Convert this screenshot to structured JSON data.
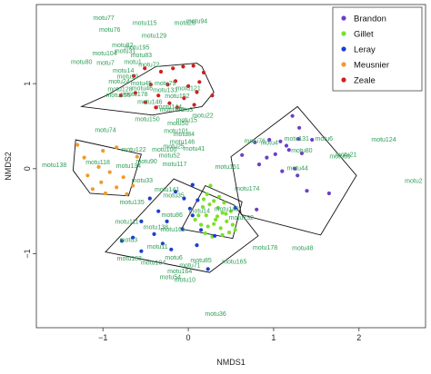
{
  "chart_data": {
    "type": "scatter",
    "xlabel": "NMDS1",
    "ylabel": "NMDS2",
    "x_ticks": [
      -1,
      0,
      1,
      2
    ],
    "y_ticks": [
      -1,
      0,
      1
    ],
    "xlim": [
      -1.78,
      2.78
    ],
    "ylim": [
      -1.87,
      1.93
    ],
    "legend": {
      "position": "top-right",
      "entries": [
        {
          "name": "Brandon",
          "color": "#6b3fc7"
        },
        {
          "name": "Gillet",
          "color": "#7be02a"
        },
        {
          "name": "Leray",
          "color": "#1a3fcf"
        },
        {
          "name": "Meusnier",
          "color": "#f09a2a"
        },
        {
          "name": "Zeale",
          "color": "#d11e1e"
        }
      ]
    },
    "series": [
      {
        "name": "Brandon",
        "color": "#6b3fc7",
        "hull": [
          [
            0.5,
            0.14
          ],
          [
            1.28,
            0.73
          ],
          [
            1.97,
            -0.08
          ],
          [
            1.55,
            -0.78
          ],
          [
            0.62,
            -0.54
          ]
        ],
        "points": [
          [
            1.22,
            0.62
          ],
          [
            1.3,
            0.48
          ],
          [
            1.08,
            0.32
          ],
          [
            0.95,
            0.34
          ],
          [
            0.78,
            0.31
          ],
          [
            1.15,
            0.27
          ],
          [
            1.29,
            0.35
          ],
          [
            1.45,
            0.34
          ],
          [
            1.18,
            0.22
          ],
          [
            0.63,
            0.16
          ],
          [
            0.92,
            0.13
          ],
          [
            0.83,
            0.05
          ],
          [
            1.25,
            0.0
          ],
          [
            1.1,
            -0.03
          ],
          [
            1.28,
            -0.08
          ],
          [
            1.65,
            -0.29
          ],
          [
            0.8,
            -0.48
          ],
          [
            1.39,
            -0.26
          ],
          [
            1.02,
            0.17
          ],
          [
            1.33,
            0.18
          ]
        ]
      },
      {
        "name": "Gillet",
        "color": "#7be02a",
        "hull": [
          [
            0.2,
            -0.2
          ],
          [
            0.63,
            -0.39
          ],
          [
            0.52,
            -0.82
          ],
          [
            -0.08,
            -0.71
          ]
        ],
        "points": [
          [
            0.22,
            -0.3
          ],
          [
            0.25,
            -0.42
          ],
          [
            0.21,
            -0.55
          ],
          [
            0.23,
            -0.68
          ],
          [
            0.3,
            -0.38
          ],
          [
            0.35,
            -0.46
          ],
          [
            0.32,
            -0.6
          ],
          [
            0.38,
            -0.7
          ],
          [
            0.4,
            -0.52
          ],
          [
            0.42,
            -0.4
          ],
          [
            0.45,
            -0.62
          ],
          [
            0.48,
            -0.75
          ],
          [
            0.28,
            -0.8
          ],
          [
            0.15,
            -0.66
          ],
          [
            0.12,
            -0.55
          ],
          [
            0.17,
            -0.45
          ],
          [
            0.5,
            -0.5
          ],
          [
            0.52,
            -0.66
          ],
          [
            0.36,
            -0.33
          ],
          [
            0.26,
            -0.2
          ],
          [
            0.34,
            -0.56
          ],
          [
            0.44,
            -0.53
          ],
          [
            0.2,
            -0.76
          ],
          [
            0.08,
            -0.6
          ],
          [
            0.55,
            -0.72
          ],
          [
            0.3,
            -0.65
          ],
          [
            0.4,
            -0.78
          ],
          [
            0.18,
            -0.36
          ]
        ]
      },
      {
        "name": "Leray",
        "color": "#1a3fcf",
        "hull": [
          [
            -0.17,
            -0.12
          ],
          [
            0.54,
            -0.43
          ],
          [
            0.82,
            -0.79
          ],
          [
            0.25,
            -1.22
          ],
          [
            -0.97,
            -0.98
          ]
        ],
        "points": [
          [
            0.05,
            -0.19
          ],
          [
            0.11,
            -0.37
          ],
          [
            -0.05,
            -0.35
          ],
          [
            0.02,
            -0.47
          ],
          [
            -0.35,
            -0.5
          ],
          [
            -0.55,
            -0.62
          ],
          [
            -0.4,
            -0.77
          ],
          [
            -0.65,
            -0.81
          ],
          [
            -0.78,
            -0.85
          ],
          [
            -0.3,
            -0.88
          ],
          [
            -0.2,
            -0.95
          ],
          [
            0.05,
            -0.55
          ],
          [
            0.15,
            -0.72
          ],
          [
            -0.55,
            -0.97
          ],
          [
            0.23,
            -1.18
          ],
          [
            -0.07,
            -0.71
          ],
          [
            -0.45,
            -0.35
          ],
          [
            0.31,
            -0.79
          ],
          [
            0.55,
            -0.46
          ],
          [
            -0.15,
            -0.27
          ],
          [
            0.1,
            -0.9
          ],
          [
            -0.25,
            -0.62
          ]
        ]
      },
      {
        "name": "Meusnier",
        "color": "#f09a2a",
        "hull": [
          [
            -1.32,
            0.34
          ],
          [
            -0.55,
            0.17
          ],
          [
            -0.7,
            -0.32
          ],
          [
            -1.15,
            -0.29
          ],
          [
            -1.35,
            -0.02
          ]
        ],
        "points": [
          [
            -1.3,
            0.28
          ],
          [
            -1.0,
            0.21
          ],
          [
            -0.84,
            0.25
          ],
          [
            -0.6,
            0.14
          ],
          [
            -1.22,
            0.13
          ],
          [
            -1.05,
            0.02
          ],
          [
            -0.92,
            -0.04
          ],
          [
            -1.18,
            -0.08
          ],
          [
            -0.76,
            -0.1
          ],
          [
            -1.02,
            -0.16
          ],
          [
            -0.84,
            -0.22
          ],
          [
            -0.65,
            -0.2
          ],
          [
            -0.97,
            -0.29
          ],
          [
            -0.72,
            -0.3
          ],
          [
            -1.12,
            -0.24
          ]
        ]
      },
      {
        "name": "Zeale",
        "color": "#d11e1e",
        "hull": [
          [
            -0.94,
            0.87
          ],
          [
            -0.38,
            1.2
          ],
          [
            0.1,
            1.24
          ],
          [
            0.16,
            1.2
          ],
          [
            0.3,
            0.9
          ],
          [
            0.16,
            0.73
          ],
          [
            -0.42,
            0.63
          ],
          [
            -1.25,
            0.73
          ]
        ],
        "points": [
          [
            -0.64,
            1.09
          ],
          [
            -0.51,
            1.18
          ],
          [
            -0.32,
            1.14
          ],
          [
            -0.18,
            1.18
          ],
          [
            -0.06,
            1.2
          ],
          [
            0.06,
            1.21
          ],
          [
            0.18,
            1.13
          ],
          [
            -0.44,
            0.99
          ],
          [
            -0.24,
            0.99
          ],
          [
            -0.15,
            1.03
          ],
          [
            0.0,
            0.97
          ],
          [
            0.1,
            0.9
          ],
          [
            0.28,
            0.86
          ],
          [
            -0.62,
            0.89
          ],
          [
            -0.35,
            0.86
          ],
          [
            -0.05,
            0.83
          ],
          [
            0.07,
            0.75
          ],
          [
            -0.79,
            0.86
          ],
          [
            -0.22,
            0.77
          ],
          [
            -0.13,
            0.72
          ],
          [
            -0.5,
            0.78
          ],
          [
            0.13,
            1.02
          ],
          [
            -0.38,
            0.72
          ]
        ]
      }
    ],
    "motu_labels": [
      {
        "text": "motu77",
        "x": -0.99,
        "y": 1.75
      },
      {
        "text": "motu115",
        "x": -0.51,
        "y": 1.69
      },
      {
        "text": "motu28",
        "x": -0.04,
        "y": 1.69
      },
      {
        "text": "motu94",
        "x": 0.1,
        "y": 1.71
      },
      {
        "text": "motu76",
        "x": -0.92,
        "y": 1.61
      },
      {
        "text": "motu129",
        "x": -0.4,
        "y": 1.54
      },
      {
        "text": "motu82",
        "x": -0.77,
        "y": 1.43
      },
      {
        "text": "motu195",
        "x": -0.6,
        "y": 1.4
      },
      {
        "text": "motu31",
        "x": -0.74,
        "y": 1.36
      },
      {
        "text": "motu104",
        "x": -0.98,
        "y": 1.33
      },
      {
        "text": "motu83",
        "x": -0.55,
        "y": 1.31
      },
      {
        "text": "motu80",
        "x": -1.25,
        "y": 1.23
      },
      {
        "text": "motu7",
        "x": -0.97,
        "y": 1.22
      },
      {
        "text": "motu1",
        "x": -0.65,
        "y": 1.23
      },
      {
        "text": "motu72",
        "x": -0.46,
        "y": 1.2
      },
      {
        "text": "motu14",
        "x": -0.76,
        "y": 1.13
      },
      {
        "text": "motu19",
        "x": -0.71,
        "y": 1.06
      },
      {
        "text": "motu24",
        "x": -0.81,
        "y": 1.0
      },
      {
        "text": "motu45",
        "x": -0.55,
        "y": 0.98
      },
      {
        "text": "motu79",
        "x": -0.27,
        "y": 0.98
      },
      {
        "text": "motu128",
        "x": -0.8,
        "y": 0.91
      },
      {
        "text": "motu46",
        "x": -0.54,
        "y": 0.92
      },
      {
        "text": "motu133",
        "x": -0.27,
        "y": 0.9
      },
      {
        "text": "motu121",
        "x": 0.0,
        "y": 0.92
      },
      {
        "text": "motu178",
        "x": -0.62,
        "y": 0.85
      },
      {
        "text": "motu152",
        "x": -0.13,
        "y": 0.83
      },
      {
        "text": "motu155",
        "x": -0.82,
        "y": 0.84
      },
      {
        "text": "motu144",
        "x": -0.22,
        "y": 0.7
      },
      {
        "text": "motu146",
        "x": -0.45,
        "y": 0.76
      },
      {
        "text": "motu170",
        "x": -0.19,
        "y": 0.67
      },
      {
        "text": "motu3",
        "x": -0.05,
        "y": 0.67
      },
      {
        "text": "motu22",
        "x": 0.17,
        "y": 0.6
      },
      {
        "text": "motu150",
        "x": -0.48,
        "y": 0.56
      },
      {
        "text": "motu15",
        "x": -0.02,
        "y": 0.55
      },
      {
        "text": "motu74",
        "x": -0.97,
        "y": 0.43
      },
      {
        "text": "motu50",
        "x": -0.12,
        "y": 0.51
      },
      {
        "text": "motu101",
        "x": -0.14,
        "y": 0.42
      },
      {
        "text": "motu84",
        "x": -0.05,
        "y": 0.38
      },
      {
        "text": "motu146",
        "x": -0.07,
        "y": 0.29
      },
      {
        "text": "motu25",
        "x": -0.17,
        "y": 0.24
      },
      {
        "text": "motu41",
        "x": 0.07,
        "y": 0.21
      },
      {
        "text": "motu122",
        "x": -0.64,
        "y": 0.2
      },
      {
        "text": "motu100",
        "x": -0.28,
        "y": 0.2
      },
      {
        "text": "motu52",
        "x": -0.22,
        "y": 0.13
      },
      {
        "text": "motu117",
        "x": -0.16,
        "y": 0.03
      },
      {
        "text": "motu118",
        "x": -1.06,
        "y": 0.05
      },
      {
        "text": "motu134",
        "x": -0.7,
        "y": 0.01
      },
      {
        "text": "motu90",
        "x": -0.49,
        "y": 0.06
      },
      {
        "text": "motu138",
        "x": -1.57,
        "y": 0.02
      },
      {
        "text": "motu151",
        "x": 0.46,
        "y": 0.0
      },
      {
        "text": "motu33",
        "x": -0.54,
        "y": -0.16
      },
      {
        "text": "motu76",
        "x": 0.78,
        "y": 0.3
      },
      {
        "text": "motu4",
        "x": 0.95,
        "y": 0.28
      },
      {
        "text": "motu131",
        "x": 1.27,
        "y": 0.33
      },
      {
        "text": "motu6",
        "x": 1.59,
        "y": 0.33
      },
      {
        "text": "motu124",
        "x": 2.29,
        "y": 0.32
      },
      {
        "text": "motu80",
        "x": 1.33,
        "y": 0.19
      },
      {
        "text": "motu21",
        "x": 1.85,
        "y": 0.14
      },
      {
        "text": "motu69",
        "x": 1.78,
        "y": 0.12
      },
      {
        "text": "motu44",
        "x": 1.28,
        "y": -0.02
      },
      {
        "text": "motu2",
        "x": 2.64,
        "y": -0.17
      },
      {
        "text": "motu141",
        "x": -0.25,
        "y": -0.27
      },
      {
        "text": "motu174",
        "x": 0.69,
        "y": -0.26
      },
      {
        "text": "motu35",
        "x": -0.17,
        "y": -0.34
      },
      {
        "text": "motu135",
        "x": -0.66,
        "y": -0.42
      },
      {
        "text": "motu142",
        "x": 0.45,
        "y": -0.5
      },
      {
        "text": "motu86",
        "x": -0.19,
        "y": -0.57
      },
      {
        "text": "motu132",
        "x": 0.62,
        "y": -0.6
      },
      {
        "text": "motu111",
        "x": -0.72,
        "y": -0.65
      },
      {
        "text": "motu14",
        "x": 0.13,
        "y": -0.52
      },
      {
        "text": "motu138",
        "x": -0.38,
        "y": -0.71
      },
      {
        "text": "motu161",
        "x": -0.18,
        "y": -0.74
      },
      {
        "text": "motu3",
        "x": -0.7,
        "y": -0.86
      },
      {
        "text": "motu11",
        "x": -0.36,
        "y": -0.94
      },
      {
        "text": "motu178",
        "x": 0.9,
        "y": -0.95
      },
      {
        "text": "motu48",
        "x": 1.34,
        "y": -0.96
      },
      {
        "text": "motu183",
        "x": -0.69,
        "y": -1.08
      },
      {
        "text": "motu6",
        "x": -0.17,
        "y": -1.07
      },
      {
        "text": "motu104",
        "x": -0.41,
        "y": -1.13
      },
      {
        "text": "motu85",
        "x": 0.15,
        "y": -1.1
      },
      {
        "text": "motu164",
        "x": -0.1,
        "y": -1.23
      },
      {
        "text": "motu71",
        "x": 0.02,
        "y": -1.16
      },
      {
        "text": "motu165",
        "x": 0.54,
        "y": -1.12
      },
      {
        "text": "motu54",
        "x": -0.21,
        "y": -1.3
      },
      {
        "text": "motu10",
        "x": -0.04,
        "y": -1.33
      },
      {
        "text": "motu36",
        "x": 0.32,
        "y": -1.73
      }
    ]
  }
}
